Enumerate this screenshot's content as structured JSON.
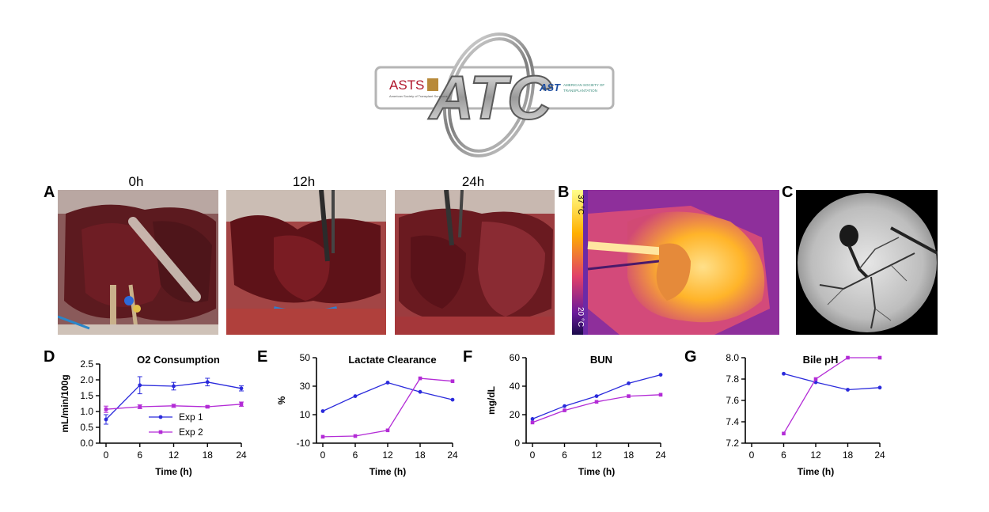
{
  "logo": {
    "center_text": "ATC",
    "left_text": "ASTS",
    "left_sub": "American Society of Transplant Surgeons",
    "right_text": "AST",
    "right_sub_1": "AMERICAN SOCIETY OF",
    "right_sub_2": "TRANSPLANTATION"
  },
  "panels": {
    "A": "A",
    "B": "B",
    "C": "C",
    "D": "D",
    "E": "E",
    "F": "F",
    "G": "G"
  },
  "photos": {
    "t0": "0h",
    "t12": "12h",
    "t24": "24h",
    "thermal_high": "37 °C",
    "thermal_low": "20 °C"
  },
  "colors": {
    "exp1": "#2b2bdc",
    "exp2": "#b32bd6"
  },
  "chart_data": [
    {
      "id": "D",
      "type": "line",
      "title": "O2 Consumption",
      "xlabel": "Time (h)",
      "ylabel": "mL/min/100g",
      "x": [
        0,
        6,
        12,
        18,
        24
      ],
      "xticks": [
        "0",
        "6",
        "12",
        "18",
        "24"
      ],
      "yticks": [
        "0.0",
        "0.5",
        "1.0",
        "1.5",
        "2.0",
        "2.5"
      ],
      "ylim": [
        0,
        2.5
      ],
      "series": [
        {
          "name": "Exp 1",
          "values": [
            0.75,
            1.83,
            1.8,
            1.93,
            1.73
          ],
          "errors": [
            0.15,
            0.27,
            0.12,
            0.12,
            0.08
          ]
        },
        {
          "name": "Exp 2",
          "values": [
            1.07,
            1.15,
            1.18,
            1.15,
            1.23
          ],
          "errors": [
            0.1,
            0.06,
            0.05,
            0.03,
            0.07
          ]
        }
      ],
      "legend": "bottom-right"
    },
    {
      "id": "E",
      "type": "line",
      "title": "Lactate Clearance",
      "xlabel": "Time (h)",
      "ylabel": "%",
      "x": [
        0,
        6,
        12,
        18,
        24
      ],
      "xticks": [
        "0",
        "6",
        "12",
        "18",
        "24"
      ],
      "yticks": [
        "-10",
        "10",
        "30",
        "50"
      ],
      "ylim": [
        -10,
        50
      ],
      "series": [
        {
          "name": "Exp 1",
          "values": [
            12.5,
            23,
            32.5,
            26,
            20.5
          ]
        },
        {
          "name": "Exp 2",
          "values": [
            -5.5,
            -5,
            -1,
            35.5,
            33.5
          ]
        }
      ]
    },
    {
      "id": "F",
      "type": "line",
      "title": "BUN",
      "xlabel": "Time (h)",
      "ylabel": "mg/dL",
      "x": [
        0,
        6,
        12,
        18,
        24
      ],
      "xticks": [
        "0",
        "6",
        "12",
        "18",
        "24"
      ],
      "yticks": [
        "0",
        "20",
        "40",
        "60"
      ],
      "ylim": [
        0,
        60
      ],
      "series": [
        {
          "name": "Exp 1",
          "values": [
            17,
            26,
            33,
            42,
            48
          ]
        },
        {
          "name": "Exp 2",
          "values": [
            14.5,
            23,
            29,
            33,
            34
          ]
        }
      ]
    },
    {
      "id": "G",
      "type": "line",
      "title": "Bile pH",
      "xlabel": "Time (h)",
      "ylabel": "",
      "x": [
        0,
        6,
        12,
        18,
        24
      ],
      "xticks": [
        "0",
        "6",
        "12",
        "18",
        "24"
      ],
      "yticks": [
        "7.2",
        "7.4",
        "7.6",
        "7.8",
        "8.0"
      ],
      "ylim": [
        7.2,
        8.0
      ],
      "series": [
        {
          "name": "Exp 1",
          "x": [
            6,
            12,
            18,
            24
          ],
          "values": [
            7.85,
            7.77,
            7.7,
            7.72
          ]
        },
        {
          "name": "Exp 2",
          "x": [
            6,
            12,
            18,
            24
          ],
          "values": [
            7.29,
            7.8,
            8.0,
            8.0
          ]
        }
      ]
    }
  ]
}
